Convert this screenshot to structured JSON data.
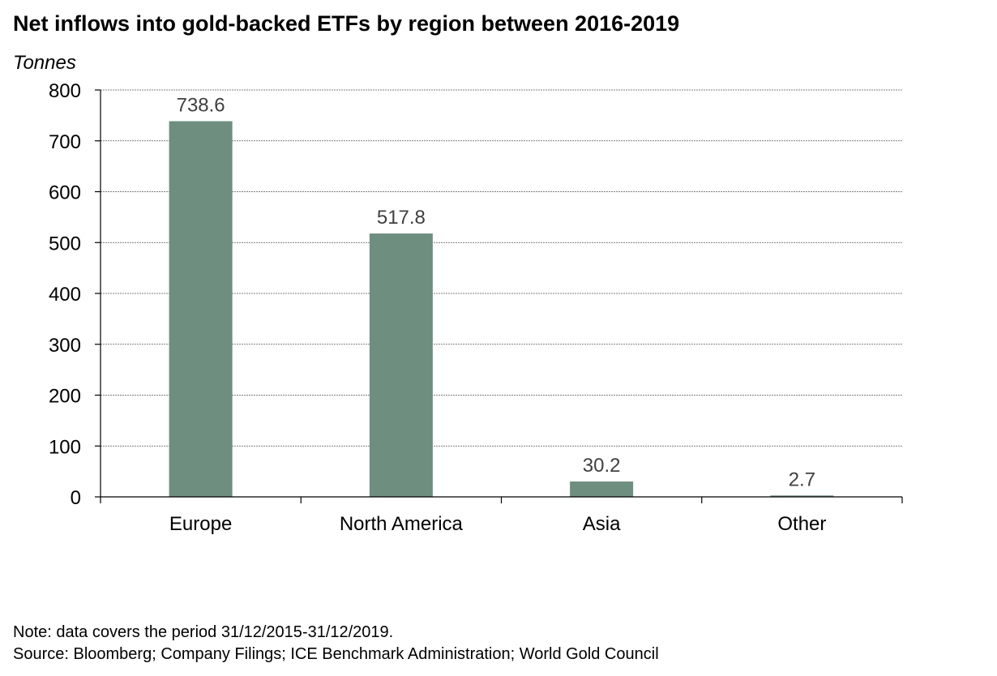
{
  "title": "Net inflows into gold-backed ETFs by region between 2016-2019",
  "unit_label": "Tonnes",
  "chart_data": {
    "type": "bar",
    "categories": [
      "Europe",
      "North America",
      "Asia",
      "Other"
    ],
    "values": [
      738.6,
      517.8,
      30.2,
      2.7
    ],
    "data_labels": [
      "738.6",
      "517.8",
      "30.2",
      "2.7"
    ],
    "ylabel": "Tonnes",
    "ylim": [
      0,
      800
    ],
    "yticks": [
      0,
      100,
      200,
      300,
      400,
      500,
      600,
      700,
      800
    ],
    "grid": true,
    "legend": "none",
    "bar_color": "#6e8e80"
  },
  "footnote": {
    "note": "Note: data covers the period 31/12/2015-31/12/2019.",
    "source": "Source: Bloomberg; Company Filings; ICE Benchmark Administration; World Gold Council"
  }
}
